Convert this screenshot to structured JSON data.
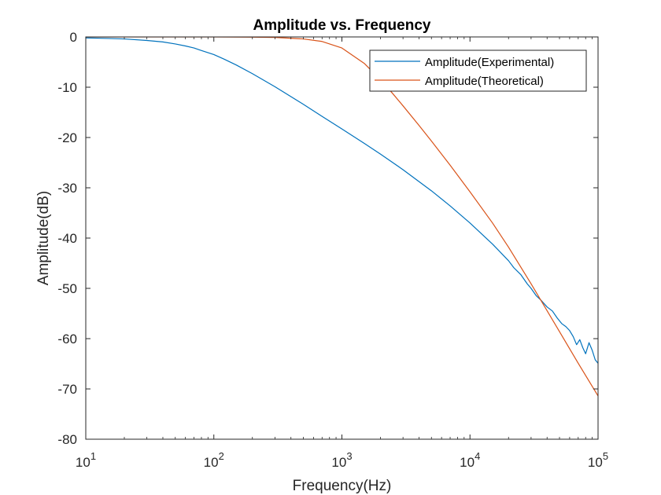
{
  "chart_data": {
    "type": "line",
    "title": "Amplitude vs. Frequency",
    "xlabel": "Frequency(Hz)",
    "ylabel": "Amplitude(dB)",
    "xscale": "log",
    "xlim": [
      10,
      100000
    ],
    "ylim": [
      -80,
      0
    ],
    "xticks": [
      10,
      100,
      1000,
      10000,
      100000
    ],
    "xtick_labels": [
      {
        "base": "10",
        "exp": "1"
      },
      {
        "base": "10",
        "exp": "2"
      },
      {
        "base": "10",
        "exp": "3"
      },
      {
        "base": "10",
        "exp": "4"
      },
      {
        "base": "10",
        "exp": "5"
      }
    ],
    "yticks": [
      0,
      -10,
      -20,
      -30,
      -40,
      -50,
      -60,
      -70,
      -80
    ],
    "ytick_labels": [
      "0",
      "-10",
      "-20",
      "-30",
      "-40",
      "-50",
      "-60",
      "-70",
      "-80"
    ],
    "grid": false,
    "legend_position": "top-right",
    "series": [
      {
        "name": "Amplitude(Experimental)",
        "color": "#0072BD",
        "x": [
          10,
          15,
          20,
          30,
          40,
          50,
          60,
          70,
          80,
          100,
          120,
          150,
          200,
          300,
          500,
          700,
          1000,
          1500,
          2000,
          3000,
          5000,
          7000,
          10000,
          15000,
          20000,
          22000,
          25000,
          28000,
          30000,
          33000,
          36000,
          40000,
          44000,
          48000,
          52000,
          56000,
          60000,
          64000,
          68000,
          72000,
          76000,
          80000,
          85000,
          90000,
          95000,
          100000
        ],
        "y": [
          -0.2,
          -0.3,
          -0.4,
          -0.7,
          -1.0,
          -1.4,
          -1.8,
          -2.2,
          -2.7,
          -3.5,
          -4.4,
          -5.6,
          -7.3,
          -9.9,
          -13.4,
          -15.8,
          -18.3,
          -21.2,
          -23.3,
          -26.4,
          -30.6,
          -33.6,
          -37.0,
          -41.2,
          -44.5,
          -45.9,
          -47.3,
          -49.1,
          -50.0,
          -51.5,
          -52.4,
          -53.7,
          -54.5,
          -55.9,
          -57.0,
          -57.6,
          -58.4,
          -59.6,
          -61.2,
          -60.2,
          -61.8,
          -63.0,
          -60.8,
          -62.3,
          -64.2,
          -64.9
        ]
      },
      {
        "name": "Amplitude(Theoretical)",
        "color": "#D95319",
        "x": [
          10,
          20,
          50,
          100,
          200,
          300,
          500,
          700,
          1000,
          1500,
          2000,
          2500,
          3000,
          4000,
          5000,
          7000,
          10000,
          15000,
          20000,
          30000,
          50000,
          70000,
          100000
        ],
        "y": [
          0,
          0,
          0,
          0,
          -0.05,
          -0.1,
          -0.4,
          -0.9,
          -2.2,
          -5.3,
          -8.5,
          -11.3,
          -13.7,
          -17.6,
          -20.7,
          -25.5,
          -30.8,
          -37.0,
          -41.8,
          -49.1,
          -58.6,
          -64.9,
          -71.4
        ]
      }
    ]
  }
}
